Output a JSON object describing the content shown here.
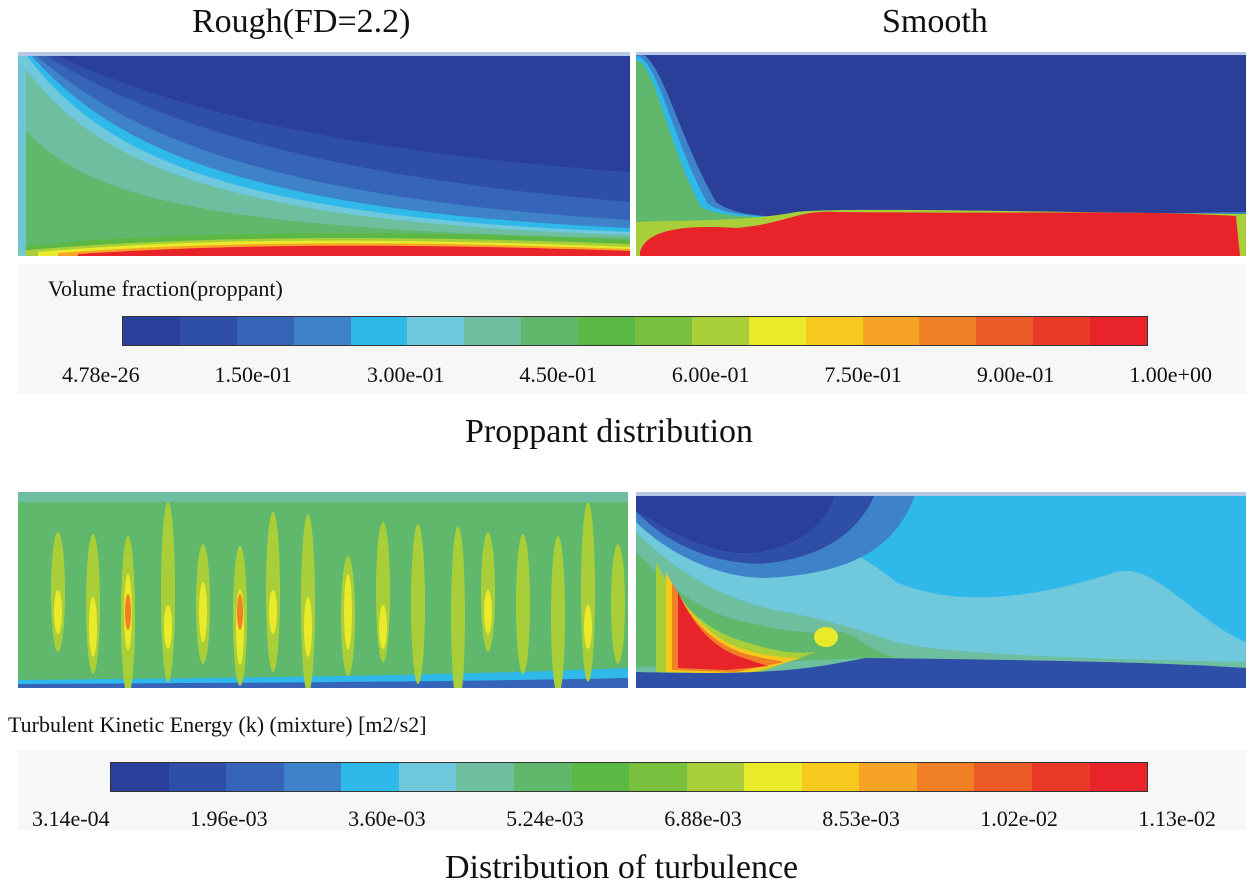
{
  "proppant": {
    "titles": {
      "rough": "Rough(FD=2.2)",
      "smooth": "Smooth"
    },
    "legend_label": "Volume  fraction(proppant)",
    "ticks": [
      "4.78e-26",
      "1.50e-01",
      "3.00e-01",
      "4.50e-01",
      "6.00e-01",
      "7.50e-01",
      "9.00e-01",
      "1.00e+00"
    ],
    "section_title": "Proppant distribution"
  },
  "turbulence": {
    "legend_label": "Turbulent Kinetic Energy (k) (mixture)   [m2/s2]",
    "ticks": [
      "3.14e-04",
      "1.96e-03",
      "3.60e-03",
      "5.24e-03",
      "6.88e-03",
      "8.53e-03",
      "1.02e-02",
      "1.13e-02"
    ],
    "section_title": "Distribution of turbulence"
  },
  "colormap": [
    "#2a3f9a",
    "#2e4ea8",
    "#3564b8",
    "#3e82c9",
    "#2fb9ea",
    "#6fc8dc",
    "#6dbfa0",
    "#5fb86c",
    "#5cb845",
    "#79bf3e",
    "#a8cf3a",
    "#e9ea2a",
    "#f7c81e",
    "#f7a426",
    "#f07f25",
    "#ec5a27",
    "#ea3a28",
    "#e8232a"
  ]
}
